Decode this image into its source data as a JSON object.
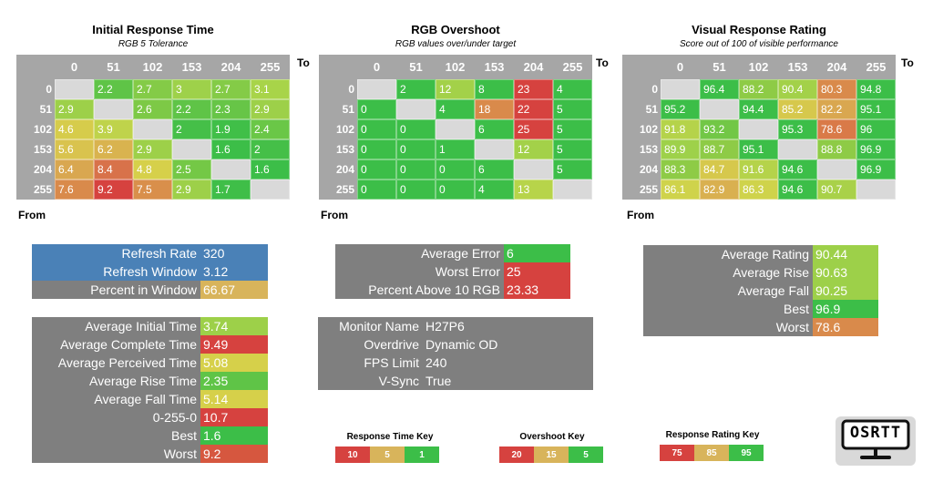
{
  "colors": {
    "header_gray": "#a6a6a6",
    "panel_gray": "#7f7f7f",
    "blue": "#4a81b7",
    "green": "#3cc24a",
    "yellow_green": "#b0d84a",
    "yellow": "#d7d449",
    "tan": "#d8b45b",
    "orange": "#d98b47",
    "red": "#d6423f",
    "empty": "#d9d9d9"
  },
  "axis": {
    "to_label": "To",
    "from_label": "From"
  },
  "matrices": [
    {
      "title": "Initial Response Time",
      "subtitle": "RGB 5 Tolerance",
      "columns": [
        "0",
        "51",
        "102",
        "153",
        "204",
        "255"
      ],
      "rows": [
        {
          "label": "0",
          "cells": [
            "",
            "2.2",
            "2.7",
            "3",
            "2.7",
            "3.1"
          ]
        },
        {
          "label": "51",
          "cells": [
            "2.9",
            "",
            "2.6",
            "2.2",
            "2.3",
            "2.9"
          ]
        },
        {
          "label": "102",
          "cells": [
            "4.6",
            "3.9",
            "",
            "2",
            "1.9",
            "2.4"
          ]
        },
        {
          "label": "153",
          "cells": [
            "5.6",
            "6.2",
            "2.9",
            "",
            "1.6",
            "2"
          ]
        },
        {
          "label": "204",
          "cells": [
            "6.4",
            "8.4",
            "4.8",
            "2.5",
            "",
            "1.6"
          ]
        },
        {
          "label": "255",
          "cells": [
            "7.6",
            "9.2",
            "7.5",
            "2.9",
            "1.7",
            ""
          ]
        }
      ],
      "colors": [
        [
          "#d9d9d9",
          "#5fc447",
          "#84cb47",
          "#9ed14a",
          "#84cb47",
          "#a8d449"
        ],
        [
          "#9dd049",
          "#d9d9d9",
          "#7dc946",
          "#5fc447",
          "#67c547",
          "#9dd049"
        ],
        [
          "#d6cc4b",
          "#bfd34b",
          "#d9d9d9",
          "#45bf48",
          "#40bf48",
          "#6ac747"
        ],
        [
          "#d9c34e",
          "#d9b34f",
          "#9dd049",
          "#d9d9d9",
          "#3cbe48",
          "#45bf48"
        ],
        [
          "#d9a750",
          "#d8724a",
          "#d6d04a",
          "#74c846",
          "#d9d9d9",
          "#3cbe48"
        ],
        [
          "#d98a4b",
          "#d6423f",
          "#d98f4b",
          "#9dd049",
          "#3fbe48",
          "#d9d9d9"
        ]
      ]
    },
    {
      "title": "RGB Overshoot",
      "subtitle": "RGB values over/under target",
      "columns": [
        "0",
        "51",
        "102",
        "153",
        "204",
        "255"
      ],
      "rows": [
        {
          "label": "0",
          "cells": [
            "",
            "2",
            "12",
            "8",
            "23",
            "4"
          ]
        },
        {
          "label": "51",
          "cells": [
            "0",
            "",
            "4",
            "18",
            "22",
            "5"
          ]
        },
        {
          "label": "102",
          "cells": [
            "0",
            "0",
            "",
            "6",
            "25",
            "5"
          ]
        },
        {
          "label": "153",
          "cells": [
            "0",
            "0",
            "1",
            "",
            "12",
            "5"
          ]
        },
        {
          "label": "204",
          "cells": [
            "0",
            "0",
            "0",
            "6",
            "",
            "5"
          ]
        },
        {
          "label": "255",
          "cells": [
            "0",
            "0",
            "0",
            "4",
            "13",
            ""
          ]
        }
      ],
      "colors": [
        [
          "#d9d9d9",
          "#3cbe48",
          "#a3d149",
          "#3cbe48",
          "#d6423f",
          "#3cbe48"
        ],
        [
          "#3cbe48",
          "#d9d9d9",
          "#3cbe48",
          "#d98a4b",
          "#d6423f",
          "#3cbe48"
        ],
        [
          "#3cbe48",
          "#3cbe48",
          "#d9d9d9",
          "#3cbe48",
          "#d6423f",
          "#3cbe48"
        ],
        [
          "#3cbe48",
          "#3cbe48",
          "#3cbe48",
          "#d9d9d9",
          "#a3d149",
          "#3cbe48"
        ],
        [
          "#3cbe48",
          "#3cbe48",
          "#3cbe48",
          "#3cbe48",
          "#d9d9d9",
          "#3cbe48"
        ],
        [
          "#3cbe48",
          "#3cbe48",
          "#3cbe48",
          "#3cbe48",
          "#b7d44a",
          "#d9d9d9"
        ]
      ]
    },
    {
      "title": "Visual Response Rating",
      "subtitle": "Score out of 100 of visible performance",
      "columns": [
        "0",
        "51",
        "102",
        "153",
        "204",
        "255"
      ],
      "rows": [
        {
          "label": "0",
          "cells": [
            "",
            "96.4",
            "88.2",
            "90.4",
            "80.3",
            "94.8"
          ]
        },
        {
          "label": "51",
          "cells": [
            "95.2",
            "",
            "94.4",
            "85.2",
            "82.2",
            "95.1"
          ]
        },
        {
          "label": "102",
          "cells": [
            "91.8",
            "93.2",
            "",
            "95.3",
            "78.6",
            "96"
          ]
        },
        {
          "label": "153",
          "cells": [
            "89.9",
            "88.7",
            "95.1",
            "",
            "88.8",
            "96.9"
          ]
        },
        {
          "label": "204",
          "cells": [
            "88.3",
            "84.7",
            "91.6",
            "94.6",
            "",
            "96.9"
          ]
        },
        {
          "label": "255",
          "cells": [
            "86.1",
            "82.9",
            "86.3",
            "94.6",
            "90.7",
            ""
          ]
        }
      ],
      "colors": [
        [
          "#d9d9d9",
          "#3cbe48",
          "#8ecb46",
          "#a3d149",
          "#d98a4b",
          "#3cbe48"
        ],
        [
          "#3cbe48",
          "#d9d9d9",
          "#3cbe48",
          "#d6c84c",
          "#d9a750",
          "#3cbe48"
        ],
        [
          "#b5d34a",
          "#72c746",
          "#d9d9d9",
          "#3cbe48",
          "#d97a48",
          "#3cbe48"
        ],
        [
          "#9ed14a",
          "#8ecb46",
          "#3cbe48",
          "#d9d9d9",
          "#8ecb46",
          "#3cbe48"
        ],
        [
          "#8ecb46",
          "#d6c84c",
          "#b5d34a",
          "#3cbe48",
          "#d9d9d9",
          "#3cbe48"
        ],
        [
          "#cfd34b",
          "#d9b050",
          "#cfd34b",
          "#3cbe48",
          "#a9d149",
          "#d9d9d9"
        ]
      ]
    }
  ],
  "refresh_box": [
    {
      "label": "Refresh Rate",
      "value": "320",
      "label_bg": "#4a81b7",
      "value_bg": "#4a81b7"
    },
    {
      "label": "Refresh Window",
      "value": "3.12",
      "label_bg": "#4a81b7",
      "value_bg": "#4a81b7"
    },
    {
      "label": "Percent in Window",
      "value": "66.67",
      "label_bg": "#7f7f7f",
      "value_bg": "#d8b45b"
    }
  ],
  "response_stats": [
    {
      "label": "Average Initial Time",
      "value": "3.74",
      "value_bg": "#9dd049"
    },
    {
      "label": "Average Complete Time",
      "value": "9.49",
      "value_bg": "#d6423f"
    },
    {
      "label": "Average Perceived Time",
      "value": "5.08",
      "value_bg": "#d6d04a"
    },
    {
      "label": "Average Rise Time",
      "value": "2.35",
      "value_bg": "#5fc447"
    },
    {
      "label": "Average Fall Time",
      "value": "5.14",
      "value_bg": "#d6d04a"
    },
    {
      "label": "0-255-0",
      "value": "10.7",
      "value_bg": "#d6423f"
    },
    {
      "label": "Best",
      "value": "1.6",
      "value_bg": "#3cbe48"
    },
    {
      "label": "Worst",
      "value": "9.2",
      "value_bg": "#d6573f"
    }
  ],
  "overshoot_stats": [
    {
      "label": "Average Error",
      "value": "6",
      "value_bg": "#3cbe48"
    },
    {
      "label": "Worst Error",
      "value": "25",
      "value_bg": "#d6423f"
    },
    {
      "label": "Percent Above 10 RGB",
      "value": "23.33",
      "value_bg": "#d6423f"
    }
  ],
  "monitor_info": [
    {
      "label": "Monitor Name",
      "value": "H27P6"
    },
    {
      "label": "Overdrive",
      "value": "Dynamic OD"
    },
    {
      "label": "FPS Limit",
      "value": "240"
    },
    {
      "label": "V-Sync",
      "value": "True"
    }
  ],
  "rating_stats": [
    {
      "label": "Average Rating",
      "value": "90.44",
      "value_bg": "#9dd049"
    },
    {
      "label": "Average Rise",
      "value": "90.63",
      "value_bg": "#9dd049"
    },
    {
      "label": "Average Fall",
      "value": "90.25",
      "value_bg": "#9dd049"
    },
    {
      "label": "Best",
      "value": "96.9",
      "value_bg": "#3cbe48"
    },
    {
      "label": "Worst",
      "value": "78.6",
      "value_bg": "#d98a4b"
    }
  ],
  "keys": [
    {
      "title": "Response Time Key",
      "items": [
        {
          "label": "10",
          "bg": "#d6423f"
        },
        {
          "label": "5",
          "bg": "#d8b45b"
        },
        {
          "label": "1",
          "bg": "#3cbe48"
        }
      ]
    },
    {
      "title": "Overshoot Key",
      "items": [
        {
          "label": "20",
          "bg": "#d6423f"
        },
        {
          "label": "15",
          "bg": "#d8b45b"
        },
        {
          "label": "5",
          "bg": "#3cbe48"
        }
      ]
    },
    {
      "title": "Response Rating Key",
      "items": [
        {
          "label": "75",
          "bg": "#d6423f"
        },
        {
          "label": "85",
          "bg": "#d8b45b"
        },
        {
          "label": "95",
          "bg": "#3cbe48"
        }
      ]
    }
  ],
  "logo": {
    "text": "OSRTT",
    "icon": "monitor-icon"
  }
}
